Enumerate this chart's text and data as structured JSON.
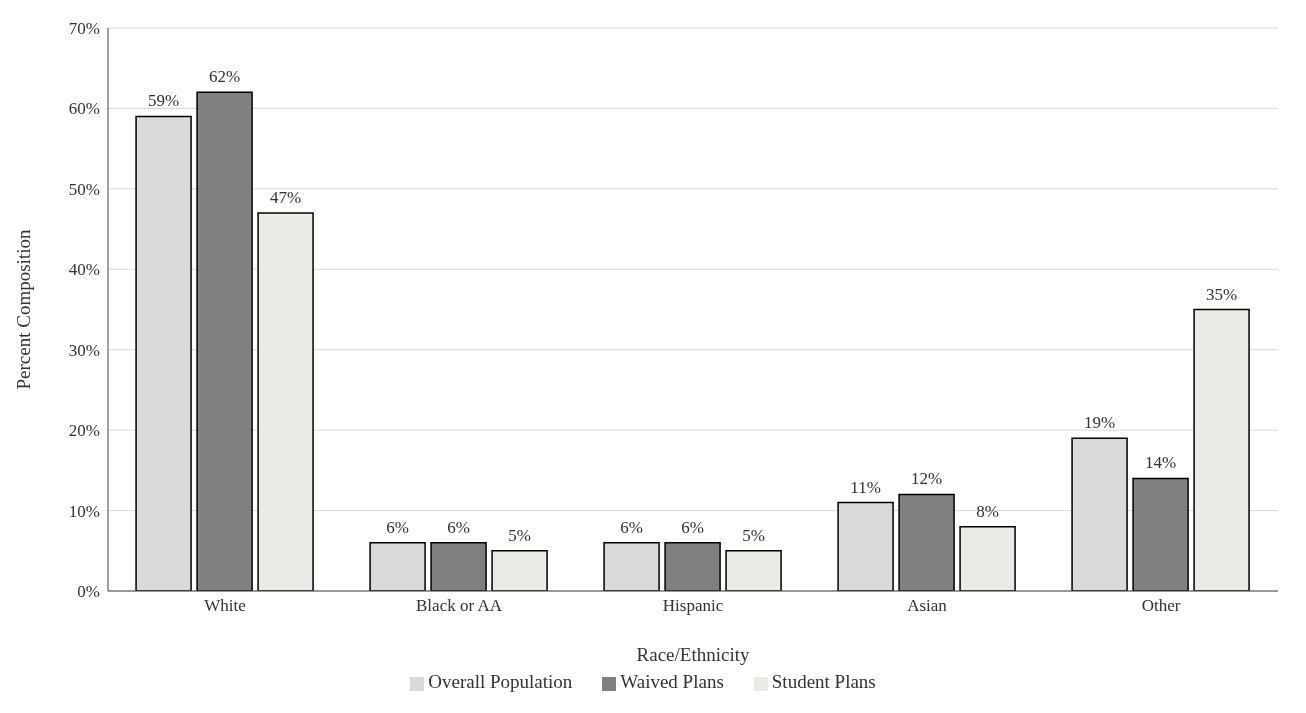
{
  "chart_data": {
    "type": "bar",
    "xlabel": "Race/Ethnicity",
    "ylabel": "Percent Composition",
    "categories": [
      "White",
      "Black or AA",
      "Hispanic",
      "Asian",
      "Other"
    ],
    "series": [
      {
        "name": "Overall Population",
        "color": "#d9d9d9",
        "values": [
          59,
          6,
          6,
          11,
          19
        ],
        "value_labels": [
          "59%",
          "6%",
          "6%",
          "11%",
          "19%"
        ]
      },
      {
        "name": "Waived Plans",
        "color": "#808080",
        "values": [
          62,
          6,
          6,
          12,
          14
        ],
        "value_labels": [
          "62%",
          "6%",
          "6%",
          "12%",
          "14%"
        ]
      },
      {
        "name": "Student Plans",
        "color": "#ebebe6",
        "values": [
          47,
          5,
          5,
          8,
          35
        ],
        "value_labels": [
          "47%",
          "5%",
          "5%",
          "8%",
          "35%"
        ]
      }
    ],
    "ylim": [
      0,
      70
    ],
    "yticks": [
      {
        "value": 0,
        "label": "0%"
      },
      {
        "value": 10,
        "label": "10%"
      },
      {
        "value": 20,
        "label": "20%"
      },
      {
        "value": 30,
        "label": "30%"
      },
      {
        "value": 40,
        "label": "40%"
      },
      {
        "value": 50,
        "label": "50%"
      },
      {
        "value": 60,
        "label": "60%"
      },
      {
        "value": 70,
        "label": "70%"
      }
    ],
    "grid": "y",
    "legend": "bottom"
  }
}
